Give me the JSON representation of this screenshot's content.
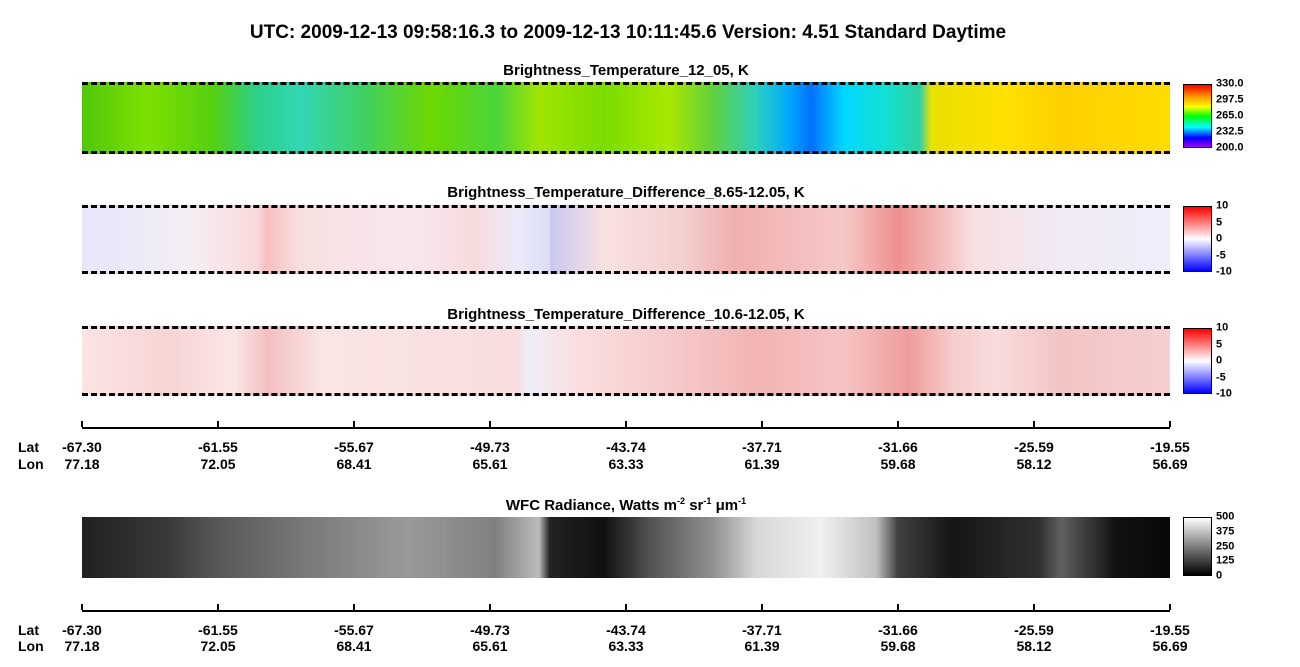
{
  "header": {
    "title": "UTC:  2009-12-13   09:58:16.3  to  2009-12-13   10:11:45.6    Version: 4.51  Standard Daytime"
  },
  "panels": [
    {
      "title": "Brightness_Temperature_12_05, K",
      "colorbar": [
        "330.0",
        "297.5",
        "265.0",
        "232.5",
        "200.0"
      ]
    },
    {
      "title": "Brightness_Temperature_Difference_8.65-12.05, K",
      "colorbar": [
        "10",
        "5",
        "0",
        "-5",
        "-10"
      ]
    },
    {
      "title": "Brightness_Temperature_Difference_10.6-12.05, K",
      "colorbar": [
        "10",
        "5",
        "0",
        "-5",
        "-10"
      ]
    },
    {
      "title": [
        "WFC Radiance, Watts m",
        "-2",
        " sr",
        "-1",
        " μm",
        "-1"
      ],
      "colorbar": [
        "500",
        "375",
        "250",
        "125",
        "0"
      ]
    }
  ],
  "axis": {
    "lat_name": "Lat",
    "lon_name": "Lon",
    "lat": [
      "-67.30",
      "-61.55",
      "-55.67",
      "-49.73",
      "-43.74",
      "-37.71",
      "-31.66",
      "-25.59",
      "-19.55"
    ],
    "lon": [
      "77.18",
      "72.05",
      "68.41",
      "65.61",
      "63.33",
      "61.39",
      "59.68",
      "58.12",
      "56.69"
    ]
  }
}
